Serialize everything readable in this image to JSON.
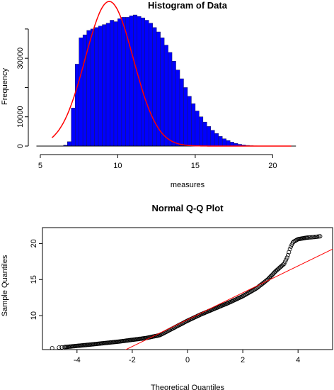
{
  "chart_data": [
    {
      "type": "bar",
      "title": "Histogram of Data",
      "xlabel": "measures",
      "ylabel": "Frequency",
      "xlim": [
        4.5,
        23.5
      ],
      "ylim": [
        0,
        47000
      ],
      "xticks": [
        "5",
        "10",
        "15",
        "20"
      ],
      "yticks": [
        "0",
        "10000",
        "30000"
      ],
      "bin_width": 0.25,
      "bins_start": 5.75,
      "values": [
        0,
        0,
        0,
        300,
        1500,
        13000,
        28000,
        37000,
        38000,
        39500,
        40000,
        40500,
        41000,
        41500,
        42000,
        43000,
        42500,
        43500,
        44000,
        44000,
        44500,
        44800,
        44300,
        43800,
        43000,
        42000,
        40500,
        39000,
        37000,
        34500,
        32000,
        29000,
        26000,
        23000,
        20000,
        17000,
        14500,
        12000,
        10000,
        8200,
        6700,
        5400,
        4300,
        3300,
        2500,
        1900,
        1350,
        900,
        600,
        380,
        230,
        130,
        70,
        30,
        10
      ],
      "normal_curve": {
        "name": "normal density",
        "mean": 9.45,
        "sd": 1.55,
        "x_from": 5.75,
        "x_to": 21.2,
        "scale": 19000
      },
      "fill_color": "#0000ff",
      "curve_color": "#ff0000"
    },
    {
      "type": "scatter",
      "title": "Normal Q-Q Plot",
      "xlabel": "Theoretical Quantiles",
      "ylabel": "Sample Quantiles",
      "xlim": [
        -5.25,
        5.25
      ],
      "ylim": [
        5.3,
        22.2
      ],
      "xticks": [
        "-4",
        "-2",
        "0",
        "2",
        "4"
      ],
      "yticks": [
        "10",
        "15",
        "20"
      ],
      "curve_x": [
        -4.9,
        -4.3,
        -3.5,
        -2.5,
        -1.5,
        -1.0,
        -0.5,
        0,
        0.5,
        1.0,
        1.5,
        2.0,
        2.5,
        2.9,
        3.2,
        3.5,
        3.62,
        3.72,
        3.82,
        4.0,
        4.3,
        4.6,
        4.8
      ],
      "curve_y": [
        5.5,
        5.7,
        6.0,
        6.4,
        6.9,
        7.3,
        8.3,
        9.3,
        10.2,
        11.0,
        11.8,
        12.7,
        13.8,
        15.0,
        16.2,
        17.2,
        18.2,
        19.4,
        20.2,
        20.6,
        20.8,
        20.9,
        21.0
      ],
      "ref_line": {
        "intercept": 9.45,
        "slope": 1.86
      },
      "point_color": "#000000",
      "line_color": "#ff0000"
    }
  ]
}
